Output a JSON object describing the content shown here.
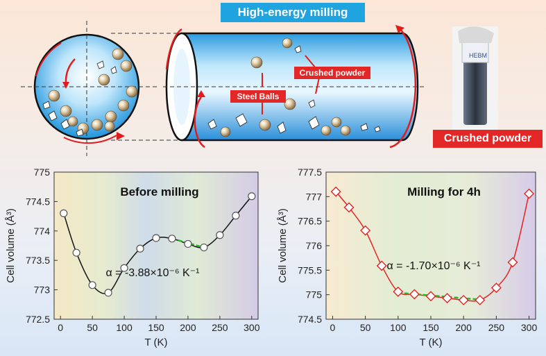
{
  "header": {
    "banner_title": "High-energy milling",
    "label_crushed_small": "Crushed powder",
    "label_steel_balls": "Steel Balls",
    "label_crushed_big": "Crushed powder",
    "vial_label": "HEBM"
  },
  "chart_data": [
    {
      "type": "line",
      "title": "Before milling",
      "annotation": "α = -3.88×10⁻⁶ K⁻¹",
      "xlabel": "T (K)",
      "ylabel": "Cell volume (Å³)",
      "xlim": [
        -10,
        310
      ],
      "ylim": [
        772.5,
        775
      ],
      "xticks": [
        0,
        50,
        100,
        150,
        200,
        250,
        300
      ],
      "yticks": [
        772.5,
        773,
        773.5,
        774,
        774.5,
        775
      ],
      "ytick_labels": [
        "772.5",
        "773",
        "773.5",
        "774",
        "774.5",
        "775"
      ],
      "marker": "circle",
      "color": "#111111",
      "series": [
        {
          "x": [
            5,
            25,
            50,
            75,
            100,
            125,
            150,
            175,
            200,
            225,
            250,
            275,
            300
          ],
          "values": [
            774.3,
            773.63,
            773.08,
            772.95,
            773.37,
            773.7,
            773.88,
            773.87,
            773.78,
            773.72,
            773.93,
            774.26,
            774.59
          ]
        }
      ],
      "fit": {
        "x": [
          175,
          225
        ],
        "values": [
          773.87,
          773.72
        ],
        "color": "#22bb22"
      }
    },
    {
      "type": "line",
      "title": "Milling for 4h",
      "annotation": "α = -1.70×10⁻⁶ K⁻¹",
      "xlabel": "T (K)",
      "ylabel": "Cell volume (Å³)",
      "xlim": [
        -10,
        310
      ],
      "ylim": [
        774.5,
        777.5
      ],
      "xticks": [
        0,
        50,
        100,
        150,
        200,
        250,
        300
      ],
      "yticks": [
        774.5,
        775,
        775.5,
        776,
        776.5,
        777,
        777.5
      ],
      "ytick_labels": [
        "774.5",
        "775",
        "775.5",
        "776",
        "776.5",
        "777",
        "777.5"
      ],
      "marker": "diamond",
      "color": "#e52222",
      "series": [
        {
          "x": [
            5,
            25,
            50,
            75,
            100,
            125,
            150,
            175,
            200,
            225,
            250,
            275,
            300
          ],
          "values": [
            777.1,
            776.78,
            776.31,
            775.59,
            775.06,
            775.01,
            774.97,
            774.93,
            774.89,
            774.89,
            775.14,
            775.66,
            777.06
          ]
        }
      ],
      "fit": {
        "x": [
          100,
          225
        ],
        "values": [
          775.04,
          774.9
        ],
        "color": "#22bb22"
      }
    }
  ]
}
